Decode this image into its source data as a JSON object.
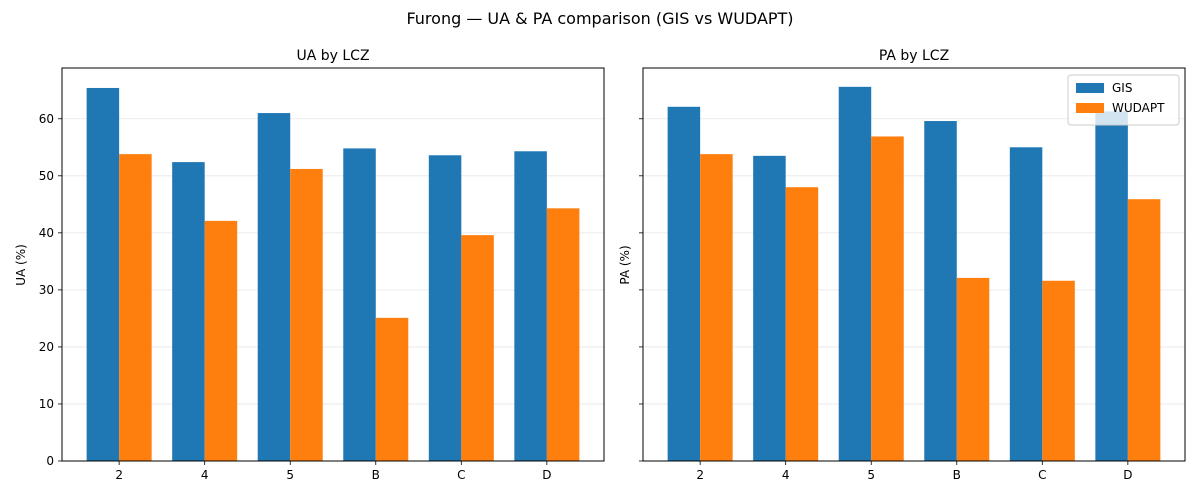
{
  "figure": {
    "title": "Furong — UA & PA comparison (GIS vs WUDAPT)"
  },
  "colors": {
    "GIS": "#1f77b4",
    "WUDAPT": "#ff7f0e"
  },
  "chart_data": [
    {
      "type": "bar",
      "title": "UA by LCZ",
      "xlabel": "",
      "ylabel": "UA (%)",
      "categories": [
        "2",
        "4",
        "5",
        "B",
        "C",
        "D"
      ],
      "ylim": [
        0,
        68.9
      ],
      "yticks": [
        0,
        10,
        20,
        30,
        40,
        50,
        60
      ],
      "grid": "y",
      "legend": null,
      "series": [
        {
          "name": "GIS",
          "values": [
            65.4,
            52.4,
            61.0,
            54.8,
            53.6,
            54.3
          ]
        },
        {
          "name": "WUDAPT",
          "values": [
            53.8,
            42.1,
            51.2,
            25.1,
            39.6,
            44.3
          ]
        }
      ]
    },
    {
      "type": "bar",
      "title": "PA by LCZ",
      "xlabel": "",
      "ylabel": "PA (%)",
      "categories": [
        "2",
        "4",
        "5",
        "B",
        "C",
        "D"
      ],
      "ylim": [
        0,
        68.9
      ],
      "yticks": [
        0,
        10,
        20,
        30,
        40,
        50,
        60
      ],
      "grid": "y",
      "legend": "top-right",
      "series": [
        {
          "name": "GIS",
          "values": [
            62.1,
            53.5,
            65.6,
            59.6,
            55.0,
            61.3
          ]
        },
        {
          "name": "WUDAPT",
          "values": [
            53.8,
            48.0,
            56.9,
            32.1,
            31.6,
            45.9
          ]
        }
      ]
    }
  ]
}
